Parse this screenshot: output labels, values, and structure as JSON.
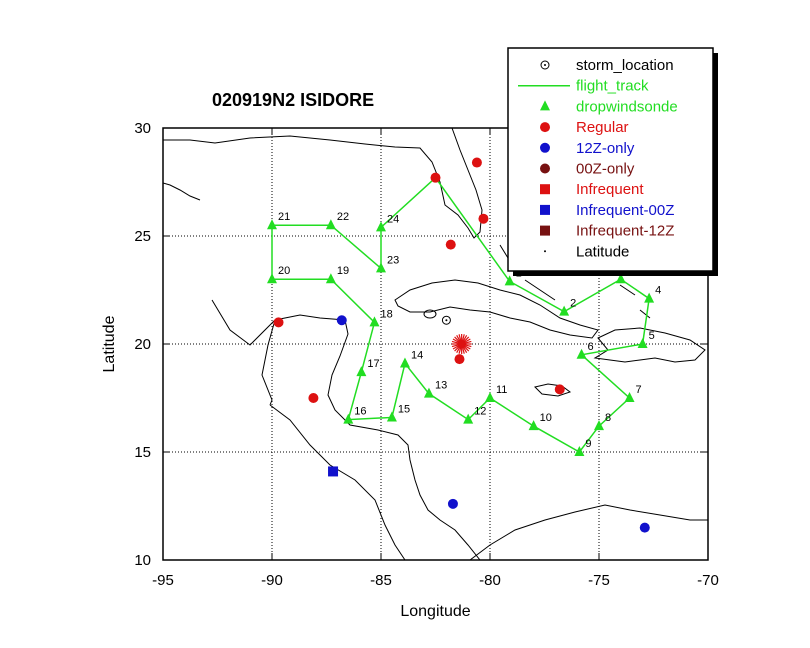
{
  "chart_data": {
    "type": "scatter",
    "title": "020919N2 ISIDORE",
    "xlabel": "Longitude",
    "ylabel": "Latitude",
    "xlim": [
      -95,
      -70
    ],
    "ylim": [
      10,
      30
    ],
    "x_ticks": [
      "-95",
      "-90",
      "-85",
      "-80",
      "-75",
      "-70"
    ],
    "y_ticks": [
      "10",
      "15",
      "20",
      "25",
      "30"
    ],
    "x_tick_values": [
      -95,
      -90,
      -85,
      -80,
      -75,
      -70
    ],
    "y_tick_values": [
      10,
      15,
      20,
      25,
      30
    ],
    "grid": "dotted",
    "grid_x": [
      -90,
      -85,
      -80,
      -75
    ],
    "grid_y": [
      15,
      20,
      25
    ],
    "legend_placement": "top-right",
    "legend": [
      {
        "label": "storm_location",
        "marker": "circle-dot",
        "color": "#000000"
      },
      {
        "label": "flight_track",
        "marker": "line",
        "color": "#22dd22"
      },
      {
        "label": "dropwindsonde",
        "marker": "triangle",
        "color": "#22dd22"
      },
      {
        "label": "Regular",
        "marker": "circle",
        "color": "#dd1111"
      },
      {
        "label": "12Z-only",
        "marker": "circle",
        "color": "#1111cc"
      },
      {
        "label": "00Z-only",
        "marker": "circle",
        "color": "#771111"
      },
      {
        "label": "Infrequent",
        "marker": "square",
        "color": "#dd1111"
      },
      {
        "label": "Infrequent-00Z",
        "marker": "square",
        "color": "#1111cc"
      },
      {
        "label": "Infrequent-12Z",
        "marker": "square",
        "color": "#771111"
      },
      {
        "label": "Latitude",
        "marker": "dot",
        "color": "#000000"
      }
    ],
    "storm_location": {
      "x": -82.0,
      "y": 21.1
    },
    "storm_star": {
      "x": -81.3,
      "y": 20.0,
      "color": "#dd1111"
    },
    "flight_track": [
      {
        "x": -82.5,
        "y": 27.7
      },
      {
        "x": -79.1,
        "y": 22.9
      },
      {
        "x": -76.6,
        "y": 21.5
      },
      {
        "x": -74.0,
        "y": 23.0
      },
      {
        "x": -72.7,
        "y": 22.1
      },
      {
        "x": -73.0,
        "y": 20.0
      },
      {
        "x": -75.8,
        "y": 19.5
      },
      {
        "x": -73.6,
        "y": 17.5
      },
      {
        "x": -75.0,
        "y": 16.2
      },
      {
        "x": -75.9,
        "y": 15.0
      },
      {
        "x": -78.0,
        "y": 16.2
      },
      {
        "x": -80.0,
        "y": 17.5
      },
      {
        "x": -81.0,
        "y": 16.5
      },
      {
        "x": -82.8,
        "y": 17.7
      },
      {
        "x": -83.9,
        "y": 19.1
      },
      {
        "x": -84.5,
        "y": 16.6
      },
      {
        "x": -86.5,
        "y": 16.5
      },
      {
        "x": -85.9,
        "y": 18.7
      },
      {
        "x": -85.3,
        "y": 21.0
      },
      {
        "x": -87.3,
        "y": 23.0
      },
      {
        "x": -90.0,
        "y": 23.0
      },
      {
        "x": -90.0,
        "y": 25.5
      },
      {
        "x": -87.3,
        "y": 25.5
      },
      {
        "x": -85.0,
        "y": 23.5
      },
      {
        "x": -85.0,
        "y": 25.4
      },
      {
        "x": -82.5,
        "y": 27.7
      }
    ],
    "dropwindsondes": [
      {
        "label": "1",
        "x": -79.1,
        "y": 22.9
      },
      {
        "label": "2",
        "x": -76.6,
        "y": 21.5
      },
      {
        "label": "3",
        "x": -74.0,
        "y": 23.0
      },
      {
        "label": "4",
        "x": -72.7,
        "y": 22.1
      },
      {
        "label": "5",
        "x": -73.0,
        "y": 20.0
      },
      {
        "label": "6",
        "x": -75.8,
        "y": 19.5
      },
      {
        "label": "7",
        "x": -73.6,
        "y": 17.5
      },
      {
        "label": "8",
        "x": -75.0,
        "y": 16.2
      },
      {
        "label": "9",
        "x": -75.9,
        "y": 15.0
      },
      {
        "label": "10",
        "x": -78.0,
        "y": 16.2
      },
      {
        "label": "11",
        "x": -80.0,
        "y": 17.5
      },
      {
        "label": "12",
        "x": -81.0,
        "y": 16.5
      },
      {
        "label": "13",
        "x": -82.8,
        "y": 17.7
      },
      {
        "label": "14",
        "x": -83.9,
        "y": 19.1
      },
      {
        "label": "15",
        "x": -84.5,
        "y": 16.6
      },
      {
        "label": "16",
        "x": -86.5,
        "y": 16.5
      },
      {
        "label": "17",
        "x": -85.9,
        "y": 18.7
      },
      {
        "label": "18",
        "x": -85.3,
        "y": 21.0
      },
      {
        "label": "19",
        "x": -87.3,
        "y": 23.0
      },
      {
        "label": "20",
        "x": -90.0,
        "y": 23.0
      },
      {
        "label": "21",
        "x": -90.0,
        "y": 25.5
      },
      {
        "label": "22",
        "x": -87.3,
        "y": 25.5
      },
      {
        "label": "23",
        "x": -85.0,
        "y": 23.5
      },
      {
        "label": "24",
        "x": -85.0,
        "y": 25.4
      }
    ],
    "regular_stations": [
      {
        "x": -80.6,
        "y": 28.4
      },
      {
        "x": -82.5,
        "y": 27.7
      },
      {
        "x": -80.3,
        "y": 25.8
      },
      {
        "x": -81.8,
        "y": 24.6
      },
      {
        "x": -89.7,
        "y": 21.0
      },
      {
        "x": -88.1,
        "y": 17.5
      },
      {
        "x": -81.4,
        "y": 19.3
      },
      {
        "x": -76.8,
        "y": 17.9
      }
    ],
    "stations_12z_only": [
      {
        "x": -86.8,
        "y": 21.1
      },
      {
        "x": -81.7,
        "y": 12.6
      },
      {
        "x": -72.9,
        "y": 11.5
      }
    ],
    "infrequent_00z": [
      {
        "x": -87.2,
        "y": 14.1
      }
    ]
  }
}
